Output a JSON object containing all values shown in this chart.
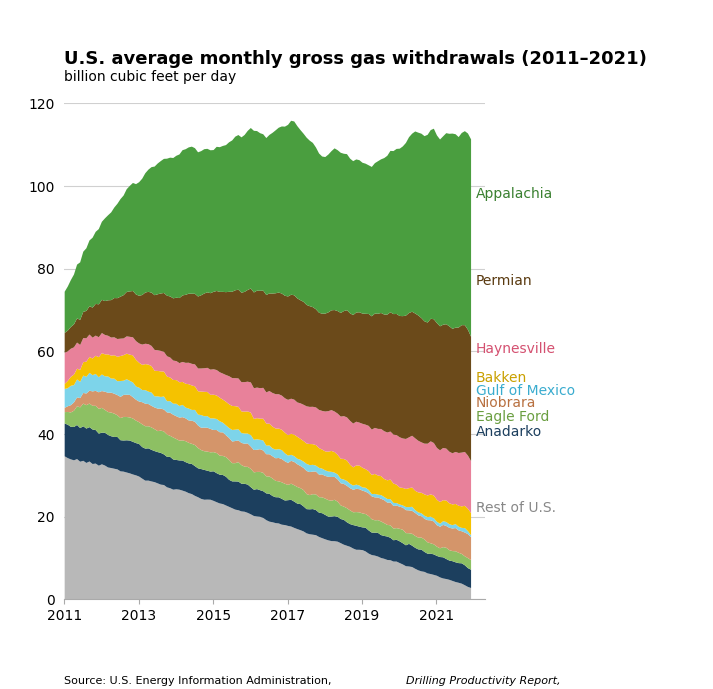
{
  "title": "U.S. average monthly gross gas withdrawals (2011–2021)",
  "subtitle": "billion cubic feet per day",
  "regions": [
    "Rest of U.S.",
    "Anadarko",
    "Eagle Ford",
    "Niobrara",
    "Gulf of Mexico",
    "Bakken",
    "Haynesville",
    "Permian",
    "Appalachia"
  ],
  "colors": [
    "#b8b8b8",
    "#1c3f5e",
    "#8dc063",
    "#d4956a",
    "#7dd4ea",
    "#f5c200",
    "#e8819a",
    "#6b4a1a",
    "#4a9e3f"
  ],
  "label_colors": [
    "#888888",
    "#1c3f5e",
    "#6a9e40",
    "#b87040",
    "#3aaccf",
    "#c9a000",
    "#d45070",
    "#5a3a10",
    "#3a8030"
  ],
  "ylim": [
    0,
    120
  ],
  "yticks": [
    0,
    20,
    40,
    60,
    80,
    100,
    120
  ],
  "xlabel_years": [
    2011,
    2013,
    2015,
    2017,
    2019,
    2021
  ],
  "n_months": 132,
  "start_year": 2011,
  "rest_of_us": [
    34.5,
    34.2,
    34.0,
    33.8,
    34.1,
    33.5,
    33.8,
    33.2,
    33.5,
    32.8,
    33.0,
    32.5,
    32.8,
    32.5,
    32.2,
    32.0,
    31.8,
    31.5,
    31.2,
    31.0,
    30.8,
    30.5,
    30.2,
    30.0,
    29.8,
    29.5,
    29.2,
    29.0,
    28.8,
    28.5,
    28.2,
    28.0,
    27.8,
    27.5,
    27.2,
    27.0,
    26.8,
    26.5,
    26.2,
    26.0,
    25.8,
    25.5,
    25.2,
    25.0,
    24.8,
    24.5,
    24.2,
    24.0,
    23.8,
    23.5,
    23.2,
    23.0,
    22.8,
    22.5,
    22.2,
    22.0,
    21.8,
    21.5,
    21.2,
    21.0,
    20.8,
    20.5,
    20.2,
    20.0,
    19.8,
    19.5,
    19.2,
    19.0,
    18.8,
    18.5,
    18.2,
    18.0,
    17.8,
    17.5,
    17.2,
    17.0,
    16.8,
    16.5,
    16.2,
    16.0,
    15.8,
    15.5,
    15.2,
    15.0,
    14.8,
    14.5,
    14.2,
    14.0,
    13.8,
    13.5,
    13.2,
    13.0,
    12.8,
    12.5,
    12.2,
    12.0,
    11.8,
    11.5,
    11.2,
    11.0,
    10.8,
    10.5,
    10.2,
    10.0,
    9.8,
    9.5,
    9.2,
    9.0,
    8.8,
    8.5,
    8.2,
    8.0,
    7.8,
    7.5,
    7.2,
    7.0,
    6.8,
    6.5,
    6.2,
    6.0,
    5.8,
    5.5,
    5.2,
    5.0,
    4.8,
    4.5,
    4.2,
    4.0,
    3.8,
    3.5,
    3.2,
    3.0
  ],
  "anadarko": [
    8.0,
    8.2,
    8.1,
    8.3,
    8.5,
    8.4,
    8.6,
    8.5,
    8.3,
    8.4,
    8.2,
    8.0,
    7.9,
    8.1,
    8.0,
    7.8,
    7.9,
    8.0,
    7.8,
    7.7,
    7.9,
    7.8,
    7.6,
    7.7,
    7.8,
    7.6,
    7.5,
    7.7,
    7.6,
    7.4,
    7.5,
    7.6,
    7.4,
    7.3,
    7.5,
    7.4,
    7.2,
    7.3,
    7.4,
    7.2,
    7.1,
    7.3,
    7.2,
    7.0,
    7.1,
    7.2,
    7.0,
    6.9,
    7.1,
    7.0,
    6.8,
    6.9,
    7.0,
    6.8,
    6.7,
    6.9,
    6.8,
    6.6,
    6.7,
    6.8,
    6.6,
    6.5,
    6.7,
    6.6,
    6.4,
    6.5,
    6.6,
    6.4,
    6.3,
    6.5,
    6.4,
    6.2,
    6.3,
    6.4,
    6.2,
    6.1,
    6.3,
    6.2,
    6.0,
    6.1,
    6.2,
    6.0,
    5.9,
    6.1,
    6.0,
    5.8,
    5.9,
    6.0,
    5.8,
    5.7,
    5.9,
    5.8,
    5.6,
    5.7,
    5.8,
    5.6,
    5.5,
    5.7,
    5.6,
    5.4,
    5.5,
    5.6,
    5.4,
    5.3,
    5.5,
    5.4,
    5.2,
    5.3,
    5.4,
    5.2,
    5.1,
    5.3,
    5.2,
    5.0,
    5.1,
    5.2,
    5.0,
    4.9,
    5.1,
    5.0,
    4.8,
    4.9,
    5.0,
    4.8,
    4.7,
    4.9,
    4.8,
    4.6,
    4.7,
    4.8,
    4.6,
    4.5
  ],
  "eagle_ford": [
    2.5,
    3.0,
    3.5,
    4.0,
    4.5,
    5.0,
    5.3,
    5.5,
    5.6,
    5.7,
    5.8,
    5.9,
    6.0,
    5.8,
    5.7,
    5.9,
    5.8,
    5.6,
    5.7,
    5.8,
    5.6,
    5.5,
    5.7,
    5.6,
    5.4,
    5.5,
    5.3,
    5.2,
    5.4,
    5.3,
    5.1,
    5.2,
    5.3,
    5.1,
    5.0,
    5.2,
    5.1,
    4.9,
    5.0,
    5.1,
    4.9,
    4.8,
    5.0,
    4.9,
    4.7,
    4.8,
    4.9,
    4.7,
    4.6,
    4.8,
    4.7,
    4.5,
    4.6,
    4.7,
    4.5,
    4.4,
    4.6,
    4.5,
    4.3,
    4.4,
    4.5,
    4.3,
    4.2,
    4.4,
    4.3,
    4.1,
    4.2,
    4.3,
    4.1,
    4.0,
    4.2,
    4.1,
    3.9,
    4.0,
    4.1,
    3.9,
    3.8,
    4.0,
    3.9,
    3.7,
    3.8,
    3.9,
    3.7,
    3.6,
    3.8,
    3.7,
    3.5,
    3.6,
    3.7,
    3.5,
    3.4,
    3.6,
    3.5,
    3.3,
    3.4,
    3.5,
    3.3,
    3.2,
    3.4,
    3.3,
    3.1,
    3.2,
    3.3,
    3.1,
    3.0,
    3.2,
    3.1,
    2.9,
    3.0,
    3.1,
    2.9,
    2.8,
    3.0,
    2.9,
    2.7,
    2.8,
    2.9,
    2.7,
    2.6,
    2.8,
    2.7,
    2.5,
    2.6,
    2.7,
    2.5,
    2.4,
    2.6,
    2.5,
    2.3,
    2.4,
    2.5,
    2.3
  ],
  "niobrara": [
    1.0,
    1.2,
    1.5,
    1.8,
    2.0,
    2.3,
    2.6,
    2.9,
    3.2,
    3.5,
    3.7,
    3.9,
    4.1,
    4.3,
    4.5,
    4.7,
    4.9,
    5.1,
    5.2,
    5.3,
    5.4,
    5.5,
    5.4,
    5.3,
    5.4,
    5.5,
    5.6,
    5.5,
    5.4,
    5.5,
    5.6,
    5.5,
    5.4,
    5.5,
    5.6,
    5.5,
    5.4,
    5.5,
    5.6,
    5.5,
    5.4,
    5.5,
    5.6,
    5.5,
    5.4,
    5.5,
    5.6,
    5.5,
    5.4,
    5.5,
    5.6,
    5.5,
    5.4,
    5.5,
    5.6,
    5.5,
    5.4,
    5.5,
    5.6,
    5.5,
    5.4,
    5.5,
    5.6,
    5.5,
    5.4,
    5.5,
    5.6,
    5.5,
    5.4,
    5.5,
    5.6,
    5.5,
    5.4,
    5.5,
    5.6,
    5.5,
    5.4,
    5.5,
    5.6,
    5.5,
    5.4,
    5.5,
    5.6,
    5.5,
    5.4,
    5.5,
    5.6,
    5.5,
    5.4,
    5.5,
    5.6,
    5.5,
    5.4,
    5.5,
    5.6,
    5.5,
    5.4,
    5.5,
    5.6,
    5.5,
    5.4,
    5.5,
    5.6,
    5.5,
    5.4,
    5.5,
    5.6,
    5.5,
    5.4,
    5.5,
    5.6,
    5.5,
    5.4,
    5.5,
    5.6,
    5.5,
    5.4,
    5.5,
    5.6,
    5.5,
    5.4,
    5.5,
    5.6,
    5.5,
    5.4,
    5.5,
    5.6,
    5.5,
    5.4,
    5.5,
    5.6,
    5.5
  ],
  "gulf_of_mexico": [
    4.5,
    4.3,
    4.6,
    4.2,
    4.5,
    4.1,
    4.4,
    4.0,
    4.3,
    3.9,
    4.2,
    3.8,
    4.1,
    3.7,
    4.0,
    3.6,
    3.9,
    3.5,
    3.8,
    3.4,
    3.7,
    3.3,
    3.6,
    3.2,
    3.5,
    3.1,
    3.4,
    3.0,
    3.3,
    2.9,
    3.2,
    2.8,
    3.1,
    2.7,
    3.0,
    2.6,
    2.9,
    2.5,
    2.8,
    2.4,
    2.7,
    2.5,
    2.8,
    2.6,
    2.9,
    2.7,
    2.8,
    2.6,
    2.7,
    2.5,
    2.6,
    2.4,
    2.5,
    2.3,
    2.6,
    2.4,
    2.5,
    2.3,
    2.4,
    2.2,
    2.5,
    2.3,
    2.4,
    2.2,
    2.3,
    2.1,
    2.2,
    2.0,
    2.1,
    1.9,
    2.0,
    1.8,
    1.9,
    1.7,
    1.8,
    1.6,
    1.7,
    1.5,
    1.6,
    1.5,
    1.4,
    1.3,
    1.4,
    1.3,
    1.2,
    1.3,
    1.2,
    1.1,
    1.2,
    1.1,
    1.0,
    1.1,
    1.0,
    0.9,
    1.0,
    0.9,
    0.8,
    0.9,
    0.8,
    0.7,
    0.8,
    0.7,
    0.8,
    0.7,
    0.8,
    0.7,
    0.8,
    0.7,
    0.8,
    0.7,
    0.8,
    0.7,
    0.8,
    0.7,
    0.8,
    0.9,
    0.8,
    0.7,
    0.8,
    0.7,
    0.8,
    0.7,
    0.8,
    0.9,
    0.8,
    0.7,
    0.8,
    0.7,
    0.8,
    0.9,
    0.8,
    0.7
  ],
  "bakken": [
    1.5,
    1.8,
    2.1,
    2.4,
    2.7,
    3.0,
    3.3,
    3.7,
    4.0,
    4.3,
    4.6,
    4.9,
    5.1,
    5.3,
    5.5,
    5.7,
    5.9,
    6.0,
    6.1,
    6.2,
    6.3,
    6.4,
    6.5,
    6.4,
    6.3,
    6.4,
    6.5,
    6.4,
    6.3,
    6.2,
    6.3,
    6.2,
    6.1,
    6.0,
    5.9,
    5.8,
    5.9,
    5.8,
    5.7,
    5.8,
    5.9,
    5.8,
    5.7,
    5.6,
    5.7,
    5.8,
    5.7,
    5.6,
    5.5,
    5.6,
    5.7,
    5.6,
    5.5,
    5.4,
    5.5,
    5.6,
    5.5,
    5.4,
    5.3,
    5.4,
    5.5,
    5.4,
    5.3,
    5.2,
    5.3,
    5.4,
    5.3,
    5.2,
    5.1,
    5.2,
    5.3,
    5.2,
    5.1,
    5.0,
    5.1,
    5.2,
    5.1,
    5.0,
    4.9,
    5.0,
    5.1,
    5.0,
    4.9,
    4.8,
    4.9,
    5.0,
    4.9,
    4.8,
    4.7,
    4.8,
    4.9,
    4.8,
    4.7,
    4.6,
    4.7,
    4.8,
    4.7,
    4.6,
    4.5,
    4.6,
    4.7,
    4.6,
    4.5,
    4.4,
    4.5,
    4.6,
    4.5,
    4.4,
    4.3,
    4.4,
    4.5,
    4.6,
    4.7,
    4.8,
    4.9,
    5.0,
    5.1,
    5.2,
    5.3,
    5.4,
    5.3,
    5.2,
    5.1,
    5.2,
    5.3,
    5.2,
    5.1,
    5.2,
    5.3,
    5.4,
    5.3,
    5.2
  ],
  "haynesville": [
    7.5,
    7.2,
    6.9,
    6.6,
    6.3,
    6.0,
    5.8,
    5.6,
    5.4,
    5.2,
    5.0,
    4.9,
    4.8,
    4.7,
    4.6,
    4.5,
    4.4,
    4.3,
    4.2,
    4.1,
    4.2,
    4.3,
    4.4,
    4.5,
    4.6,
    4.7,
    4.8,
    4.9,
    5.0,
    5.1,
    5.2,
    5.1,
    5.0,
    4.9,
    4.8,
    4.7,
    4.8,
    4.9,
    5.0,
    5.1,
    5.2,
    5.3,
    5.4,
    5.5,
    5.6,
    5.7,
    5.8,
    5.9,
    6.0,
    6.1,
    6.2,
    6.3,
    6.4,
    6.5,
    6.6,
    6.7,
    6.8,
    6.9,
    7.0,
    7.1,
    7.2,
    7.3,
    7.4,
    7.5,
    7.6,
    7.7,
    7.8,
    7.9,
    8.0,
    8.1,
    8.2,
    8.3,
    8.4,
    8.5,
    8.6,
    8.7,
    8.8,
    8.9,
    9.0,
    9.1,
    9.2,
    9.3,
    9.4,
    9.5,
    9.6,
    9.7,
    9.8,
    9.9,
    10.0,
    10.1,
    10.2,
    10.3,
    10.4,
    10.5,
    10.6,
    10.7,
    10.8,
    10.9,
    11.0,
    11.1,
    11.2,
    11.3,
    11.4,
    11.5,
    11.6,
    11.7,
    11.8,
    11.9,
    12.0,
    12.1,
    12.2,
    12.3,
    12.4,
    12.5,
    12.4,
    12.3,
    12.4,
    12.5,
    12.6,
    12.5,
    12.4,
    12.5,
    12.6,
    12.7,
    12.6,
    12.5,
    12.6,
    12.7,
    12.8,
    12.7,
    12.6,
    12.5
  ],
  "permian": [
    5.0,
    5.2,
    5.4,
    5.6,
    5.8,
    6.0,
    6.3,
    6.6,
    6.9,
    7.2,
    7.5,
    7.8,
    8.1,
    8.4,
    8.7,
    9.0,
    9.3,
    9.6,
    9.9,
    10.2,
    10.5,
    10.8,
    11.1,
    11.4,
    11.7,
    12.0,
    12.3,
    12.6,
    12.9,
    13.2,
    13.5,
    13.8,
    14.1,
    14.4,
    14.7,
    15.0,
    15.3,
    15.6,
    15.9,
    16.2,
    16.5,
    16.8,
    17.1,
    17.4,
    17.7,
    18.0,
    18.3,
    18.6,
    18.9,
    19.2,
    19.5,
    19.8,
    20.1,
    20.4,
    20.7,
    21.0,
    21.3,
    21.6,
    21.9,
    22.2,
    22.5,
    22.8,
    23.0,
    23.2,
    23.4,
    23.6,
    23.8,
    24.0,
    24.2,
    24.4,
    24.6,
    24.8,
    25.0,
    25.2,
    25.4,
    25.2,
    25.0,
    24.8,
    24.5,
    24.2,
    23.9,
    23.6,
    23.5,
    23.6,
    23.8,
    24.0,
    24.3,
    24.6,
    24.9,
    25.2,
    25.5,
    25.8,
    26.0,
    26.2,
    26.4,
    26.6,
    26.8,
    27.0,
    27.2,
    27.4,
    27.6,
    27.8,
    28.0,
    28.2,
    28.4,
    28.6,
    28.8,
    29.0,
    29.2,
    29.4,
    29.6,
    29.8,
    30.0,
    30.2,
    30.4,
    30.1,
    29.8,
    29.5,
    29.8,
    30.1,
    30.4,
    30.2,
    30.0,
    30.3,
    30.6,
    30.4,
    30.2,
    30.5,
    30.8,
    30.6,
    30.4,
    30.2
  ],
  "appalachia": [
    10.0,
    10.8,
    11.5,
    12.2,
    13.0,
    13.8,
    14.5,
    15.2,
    16.0,
    16.8,
    17.5,
    18.2,
    19.0,
    19.8,
    20.5,
    21.2,
    22.0,
    22.8,
    23.5,
    24.2,
    25.0,
    25.8,
    26.3,
    27.0,
    27.8,
    28.5,
    29.2,
    29.8,
    30.5,
    31.2,
    31.8,
    32.2,
    32.5,
    33.0,
    33.4,
    33.8,
    34.2,
    34.5,
    34.8,
    35.0,
    35.3,
    35.5,
    35.0,
    34.5,
    34.8,
    35.0,
    35.2,
    34.8,
    34.5,
    34.8,
    35.0,
    35.2,
    35.5,
    36.0,
    36.5,
    37.0,
    37.3,
    37.5,
    38.0,
    38.5,
    38.8,
    39.0,
    38.5,
    38.0,
    37.8,
    38.0,
    38.5,
    39.0,
    39.5,
    40.0,
    40.5,
    41.0,
    41.5,
    42.0,
    41.8,
    41.5,
    41.0,
    40.8,
    40.5,
    40.0,
    39.5,
    39.0,
    38.5,
    38.0,
    37.8,
    38.0,
    38.5,
    39.0,
    38.8,
    38.5,
    38.0,
    37.8,
    37.5,
    37.2,
    37.0,
    36.8,
    36.5,
    36.2,
    36.0,
    36.3,
    36.8,
    37.2,
    37.5,
    38.0,
    38.5,
    39.0,
    39.5,
    40.0,
    40.5,
    41.0,
    41.8,
    42.5,
    43.2,
    44.0,
    44.5,
    44.8,
    45.2,
    45.5,
    45.8,
    46.0,
    45.5,
    45.0,
    45.5,
    46.0,
    46.5,
    47.0,
    46.5,
    46.0,
    46.5,
    47.0,
    47.5,
    48.0
  ]
}
